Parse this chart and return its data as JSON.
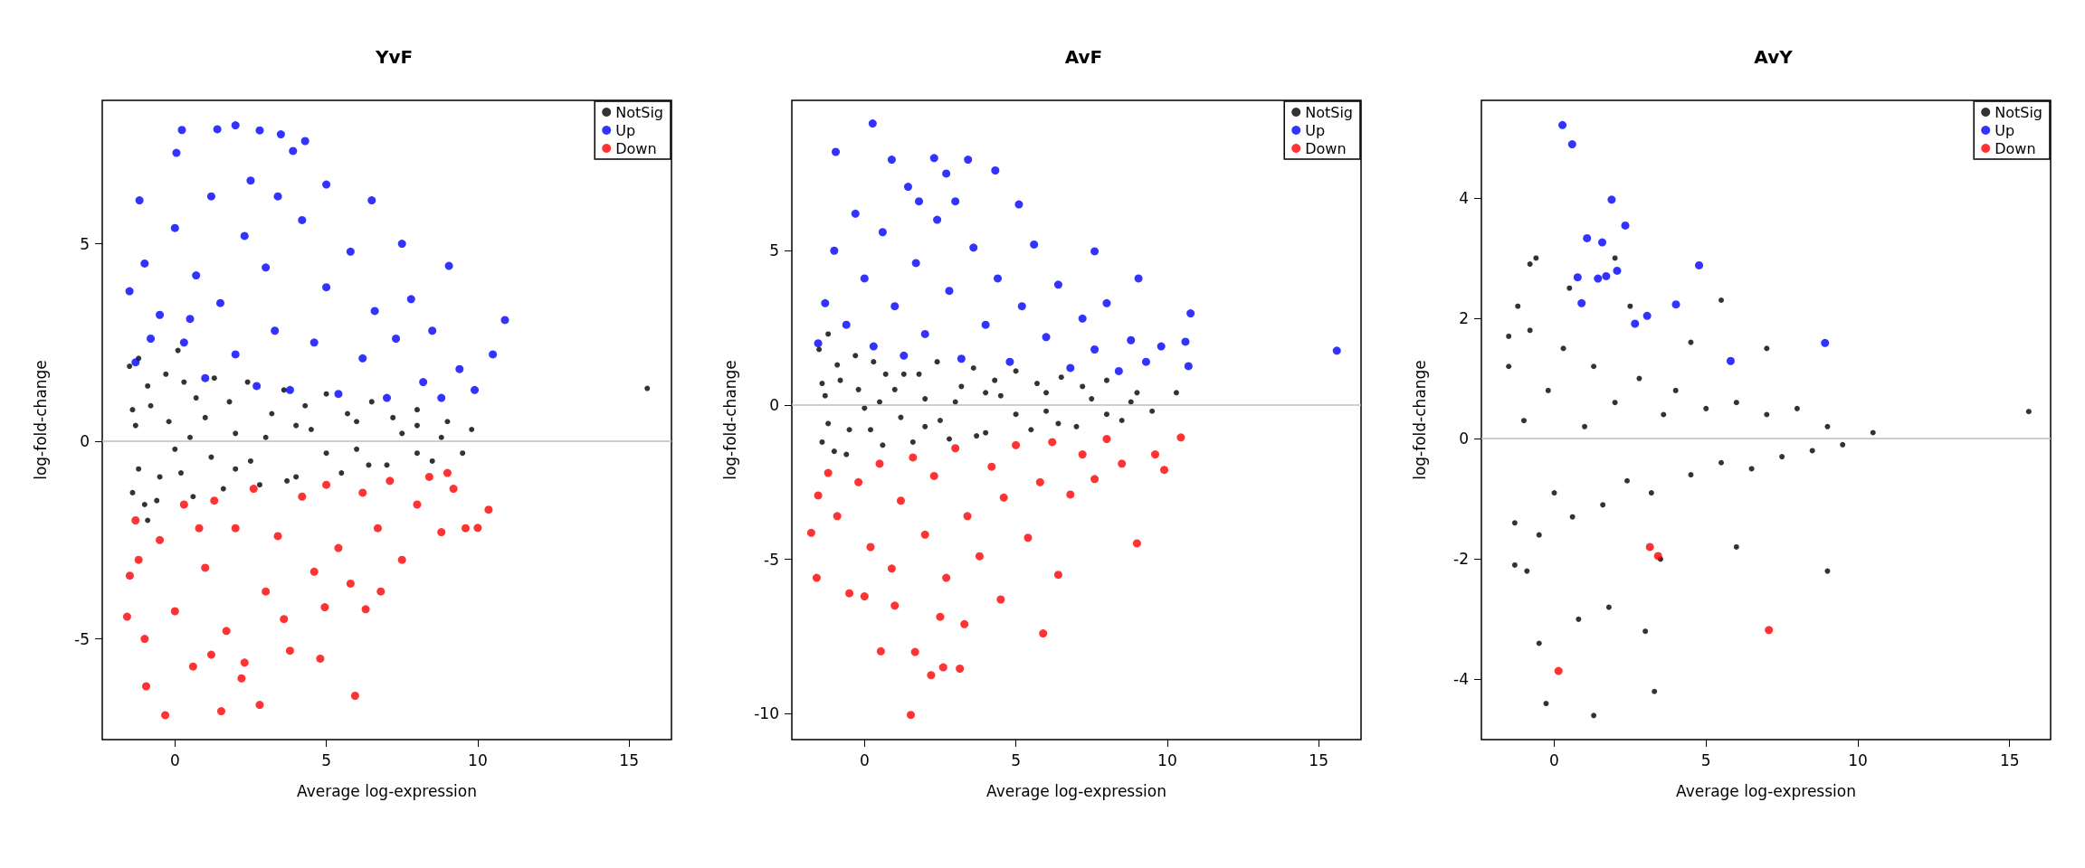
{
  "chart_data": [
    {
      "type": "scatter",
      "title": "YvF",
      "xlabel": "Average log-expression",
      "ylabel": "log-fold-change",
      "xlim": [
        -2.4,
        16.4
      ],
      "ylim": [
        -7.55,
        8.63
      ],
      "xticks": [
        0,
        5,
        10,
        15
      ],
      "yticks": [
        -5,
        0,
        5
      ],
      "legend": "top right",
      "marker": "circle",
      "ref_lines": [
        {
          "axis": "y",
          "value": 0,
          "color": "#bebebe"
        }
      ],
      "series": [
        {
          "name": "NotSig",
          "color": "#000000",
          "x": [
            -1.5,
            -1.4,
            -1.3,
            -1.2,
            -1.0,
            -0.8,
            -0.5,
            -0.3,
            0,
            0.3,
            0.6,
            1,
            1.3,
            1.6,
            2,
            2.4,
            2.8,
            3.2,
            3.6,
            4,
            4.5,
            5,
            5.5,
            6,
            6.5,
            7,
            7.5,
            8,
            8.5,
            9,
            9.5,
            -1.4,
            -1.2,
            -0.9,
            -0.6,
            -0.2,
            0.2,
            0.7,
            1.2,
            1.8,
            2.5,
            3,
            3.7,
            4.3,
            5,
            5.7,
            6.4,
            7.2,
            8,
            8.8,
            9.8,
            15.6,
            0.5,
            2,
            4,
            6,
            8,
            -0.9,
            0.1
          ],
          "values": [
            1.9,
            -1.3,
            0.4,
            2.1,
            -1.6,
            0.9,
            -0.9,
            1.7,
            -0.2,
            1.5,
            -1.4,
            0.6,
            1.6,
            -1.2,
            0.2,
            1.5,
            -1.1,
            0.7,
            1.3,
            -0.9,
            0.3,
            1.2,
            -0.8,
            0.5,
            1.0,
            -0.6,
            0.2,
            0.8,
            -0.5,
            0.5,
            -0.3,
            0.8,
            -0.7,
            1.4,
            -1.5,
            0.5,
            -0.8,
            1.1,
            -0.4,
            1.0,
            -0.5,
            0.1,
            -1.0,
            0.9,
            -0.3,
            0.7,
            -0.6,
            0.6,
            -0.3,
            0.1,
            0.3,
            1.34,
            0.1,
            -0.7,
            0.4,
            -0.2,
            0.4,
            -2.0,
            2.3
          ]
        },
        {
          "name": "Up",
          "color": "#0000ff",
          "x": [
            0.23,
            1.4,
            2.0,
            2.8,
            3.5,
            4.3,
            0.05,
            3.9,
            -1.17,
            5.0,
            6.5,
            7.5,
            9.05,
            10.9,
            10.5,
            9.9,
            9.4,
            -1.5,
            -1.3,
            -1.0,
            -0.5,
            0,
            0.3,
            0.7,
            1,
            1.2,
            1.5,
            2,
            2.3,
            2.7,
            3,
            3.3,
            3.8,
            4.2,
            4.6,
            5,
            5.4,
            5.8,
            6.2,
            6.6,
            7,
            7.3,
            7.8,
            8.2,
            8.5,
            8.8,
            2.5,
            3.4,
            -0.8,
            0.5
          ],
          "values": [
            7.88,
            7.9,
            8.0,
            7.87,
            7.77,
            7.6,
            7.3,
            7.35,
            6.1,
            6.5,
            6.1,
            5.0,
            4.44,
            3.07,
            2.2,
            1.3,
            1.83,
            3.8,
            2.0,
            4.5,
            3.2,
            5.4,
            2.5,
            4.2,
            1.6,
            6.2,
            3.5,
            2.2,
            5.2,
            1.4,
            4.4,
            2.8,
            1.3,
            5.6,
            2.5,
            3.9,
            1.2,
            4.8,
            2.1,
            3.3,
            1.1,
            2.6,
            3.6,
            1.5,
            2.8,
            1.1,
            6.6,
            6.2,
            2.6,
            3.1
          ]
        },
        {
          "name": "Down",
          "color": "#ff0000",
          "x": [
            -0.32,
            1.53,
            2.8,
            -0.95,
            5.95,
            4.95,
            6.3,
            10.36,
            10.0,
            -1.58,
            -1.49,
            -1.3,
            -1.0,
            -0.5,
            0,
            0.3,
            0.6,
            1,
            1.3,
            1.7,
            2,
            2.3,
            2.6,
            3,
            3.4,
            3.8,
            4.2,
            4.6,
            5,
            5.4,
            5.8,
            6.2,
            6.7,
            7.1,
            7.5,
            8,
            8.4,
            8.8,
            9.2,
            9.6,
            -1.2,
            0.8,
            2.2,
            1.2,
            3.6,
            4.8,
            6.8,
            9
          ],
          "values": [
            -6.93,
            -6.83,
            -6.67,
            -6.2,
            -6.44,
            -4.2,
            -4.25,
            -1.73,
            -2.19,
            -4.44,
            -3.4,
            -2.0,
            -5.0,
            -2.5,
            -4.3,
            -1.6,
            -5.7,
            -3.2,
            -1.5,
            -4.8,
            -2.2,
            -5.6,
            -1.2,
            -3.8,
            -2.4,
            -5.3,
            -1.4,
            -3.3,
            -1.1,
            -2.7,
            -3.6,
            -1.3,
            -2.2,
            -1.0,
            -3.0,
            -1.6,
            -0.9,
            -2.3,
            -1.2,
            -2.2,
            -3.0,
            -2.2,
            -6.0,
            -5.4,
            -4.5,
            -5.5,
            -3.8,
            -0.8
          ]
        }
      ]
    },
    {
      "type": "scatter",
      "title": "AvF",
      "xlabel": "Average log-expression",
      "ylabel": "log-fold-change",
      "xlim": [
        -2.4,
        16.4
      ],
      "ylim": [
        -10.84,
        9.87
      ],
      "xticks": [
        0,
        5,
        10,
        15
      ],
      "yticks": [
        -10,
        -5,
        0,
        5
      ],
      "legend": "top right",
      "marker": "circle",
      "ref_lines": [
        {
          "axis": "y",
          "value": 0,
          "color": "#bebebe"
        }
      ],
      "series": [
        {
          "name": "NotSig",
          "color": "#000000",
          "x": [
            -1.5,
            -1.4,
            -1.3,
            -1.2,
            -1.0,
            -0.8,
            -0.5,
            -0.3,
            0,
            0.3,
            0.6,
            1,
            1.3,
            1.6,
            2,
            2.4,
            2.8,
            3.2,
            3.6,
            4,
            4.5,
            5,
            5.5,
            6,
            6.5,
            7,
            7.5,
            8,
            8.5,
            9,
            9.5,
            -1.4,
            -1.2,
            -0.9,
            -0.6,
            -0.2,
            0.2,
            0.7,
            1.2,
            1.8,
            2.5,
            3,
            3.7,
            4.3,
            5,
            5.7,
            6.4,
            7.2,
            8,
            8.8,
            10.3,
            0.5,
            2,
            4,
            6
          ],
          "values": [
            1.8,
            -1.2,
            0.3,
            2.3,
            -1.5,
            0.8,
            -0.8,
            1.6,
            -0.1,
            1.4,
            -1.3,
            0.5,
            1.0,
            -1.2,
            0.2,
            1.4,
            -1.1,
            0.6,
            1.2,
            -0.9,
            0.3,
            1.1,
            -0.8,
            0.4,
            0.9,
            -0.7,
            0.2,
            0.8,
            -0.5,
            0.4,
            -0.2,
            0.7,
            -0.6,
            1.3,
            -1.6,
            0.5,
            -0.8,
            1.0,
            -0.4,
            1.0,
            -0.5,
            0.1,
            -1.0,
            0.8,
            -0.3,
            0.7,
            -0.6,
            0.6,
            -0.3,
            0.1,
            0.4,
            0.1,
            -0.7,
            0.4,
            -0.2
          ]
        },
        {
          "name": "Up",
          "color": "#0000ff",
          "x": [
            0.27,
            -0.95,
            0.9,
            2.3,
            3.42,
            4.32,
            2.7,
            1.44,
            5.1,
            7.6,
            9.05,
            10.77,
            10.6,
            10.7,
            15.6,
            -1.53,
            -1.3,
            -1.0,
            -0.6,
            -0.3,
            0,
            0.3,
            0.6,
            1,
            1.3,
            1.7,
            2,
            2.4,
            2.8,
            3.2,
            3.6,
            4,
            4.4,
            4.8,
            5.2,
            5.6,
            6,
            6.4,
            6.8,
            7.2,
            7.6,
            8,
            8.4,
            8.8,
            9.3,
            9.8,
            3,
            1.8
          ],
          "values": [
            9.12,
            8.2,
            7.95,
            8.0,
            7.95,
            7.6,
            7.5,
            7.07,
            6.5,
            4.98,
            4.1,
            2.97,
            2.05,
            1.26,
            1.76,
            2.0,
            3.3,
            5.0,
            2.6,
            6.2,
            4.1,
            1.9,
            5.6,
            3.2,
            1.6,
            4.6,
            2.3,
            6.0,
            3.7,
            1.5,
            5.1,
            2.6,
            4.1,
            1.4,
            3.2,
            5.2,
            2.2,
            3.9,
            1.2,
            2.8,
            1.8,
            3.3,
            1.1,
            2.1,
            1.4,
            1.9,
            6.6,
            6.6
          ]
        },
        {
          "name": "Down",
          "color": "#ff0000",
          "x": [
            1.53,
            2.2,
            3.15,
            2.6,
            0.54,
            1.67,
            5.9,
            9.0,
            9.9,
            10.45,
            -1.53,
            -1.76,
            -1.58,
            2.5,
            -1.2,
            -0.9,
            -0.5,
            -0.2,
            0.2,
            0.5,
            0.9,
            1.2,
            1.6,
            2,
            2.3,
            2.7,
            3,
            3.4,
            3.8,
            4.2,
            4.6,
            5,
            5.4,
            5.8,
            6.2,
            6.4,
            6.8,
            7.2,
            7.6,
            8,
            8.5,
            9.6,
            1.0,
            3.3,
            4.5,
            0
          ],
          "values": [
            -10.04,
            -8.75,
            -8.54,
            -8.5,
            -7.98,
            -8.0,
            -7.4,
            -4.48,
            -2.1,
            -1.05,
            -2.93,
            -4.14,
            -5.6,
            -6.86,
            -2.2,
            -3.6,
            -6.1,
            -2.5,
            -4.6,
            -1.9,
            -5.3,
            -3.1,
            -1.7,
            -4.2,
            -2.3,
            -5.6,
            -1.4,
            -3.6,
            -4.9,
            -2.0,
            -3.0,
            -1.3,
            -4.3,
            -2.5,
            -1.2,
            -5.5,
            -2.9,
            -1.6,
            -2.4,
            -1.1,
            -1.9,
            -1.6,
            -6.5,
            -7.1,
            -6.3,
            -6.2
          ]
        }
      ]
    },
    {
      "type": "scatter",
      "title": "AvY",
      "xlabel": "Average log-expression",
      "ylabel": "log-fold-change",
      "xlim": [
        -2.4,
        16.35
      ],
      "ylim": [
        -5.0,
        5.62
      ],
      "xticks": [
        0,
        5,
        10,
        15
      ],
      "yticks": [
        -4,
        -2,
        0,
        2,
        4
      ],
      "legend": "top right",
      "marker": "circle",
      "ref_lines": [
        {
          "axis": "y",
          "value": 0,
          "color": "#bebebe"
        }
      ],
      "series": [
        {
          "name": "NotSig",
          "color": "#000000",
          "x": [
            -1.5,
            -1.3,
            -0.8,
            -0.6,
            -0.5,
            1.3,
            3.3,
            -0.27,
            5.5,
            9.0,
            15.63,
            -1.5,
            -1.3,
            -1.0,
            -0.8,
            -0.5,
            -0.2,
            0,
            0.3,
            0.6,
            1,
            1.3,
            1.6,
            2,
            2.4,
            2.8,
            3.2,
            3.6,
            4,
            4.5,
            5,
            5.5,
            6,
            6.5,
            7,
            7.5,
            8,
            8.5,
            9,
            9.5,
            10.5,
            -1.2,
            -0.9,
            0.5,
            1.8,
            2.5,
            3.5,
            4.5,
            6,
            7,
            0.8,
            2,
            3
          ],
          "values": [
            1.7,
            -2.1,
            2.9,
            3.0,
            -3.4,
            -4.6,
            -4.2,
            -4.4,
            2.3,
            -2.2,
            0.45,
            1.2,
            -1.4,
            0.3,
            1.8,
            -1.6,
            0.8,
            -0.9,
            1.5,
            -1.3,
            0.2,
            1.2,
            -1.1,
            0.6,
            -0.7,
            1.0,
            -0.9,
            0.4,
            0.8,
            -0.6,
            0.5,
            -0.4,
            0.6,
            -0.5,
            0.4,
            -0.3,
            0.5,
            -0.2,
            0.2,
            -0.1,
            0.1,
            2.2,
            -2.2,
            2.5,
            -2.8,
            2.2,
            -2.0,
            1.6,
            -1.8,
            1.5,
            -3.0,
            3.0,
            -3.2
          ]
        },
        {
          "name": "Up",
          "color": "#0000ff",
          "x": [
            0.27,
            0.59,
            1.89,
            1.08,
            2.34,
            1.58,
            0.77,
            1.44,
            1.71,
            2.07,
            0.9,
            2.66,
            3.06,
            4.01,
            4.77,
            5.81,
            8.92
          ],
          "values": [
            5.21,
            4.89,
            3.97,
            3.33,
            3.54,
            3.26,
            2.68,
            2.66,
            2.7,
            2.79,
            2.25,
            1.91,
            2.04,
            2.23,
            2.88,
            1.29,
            1.59
          ]
        },
        {
          "name": "Down",
          "color": "#ff0000",
          "x": [
            3.15,
            3.42,
            7.07,
            0.14
          ],
          "values": [
            -1.8,
            -1.95,
            -3.18,
            -3.86
          ]
        }
      ]
    }
  ]
}
